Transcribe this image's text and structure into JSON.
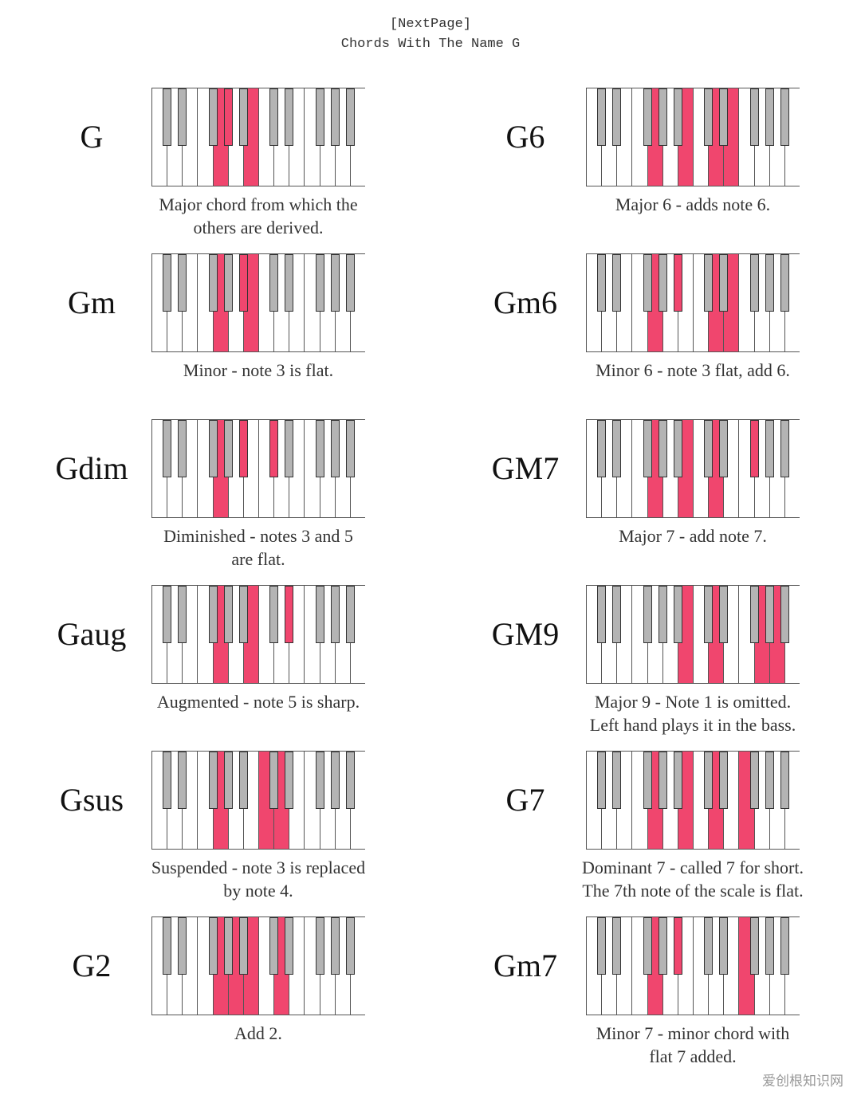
{
  "header": {
    "line1": "[NextPage]",
    "line2": "Chords With The Name G"
  },
  "colors": {
    "highlight": "#f0466e",
    "black_key": "#b4b4b4"
  },
  "chords": [
    {
      "name": "G",
      "desc_lines": [
        "Major chord from which the",
        "others are derived."
      ],
      "white_on": [
        4,
        6
      ],
      "black_on": [
        3
      ]
    },
    {
      "name": "G6",
      "desc_lines": [
        "Major 6 - adds note 6."
      ],
      "white_on": [
        4,
        6,
        8,
        9
      ],
      "black_on": []
    },
    {
      "name": "Gm",
      "desc_lines": [
        "Minor - note 3 is flat."
      ],
      "white_on": [
        4,
        6
      ],
      "black_on": [
        4
      ]
    },
    {
      "name": "Gm6",
      "desc_lines": [
        "Minor 6 - note 3 flat, add 6."
      ],
      "white_on": [
        4,
        8,
        9
      ],
      "black_on": [
        4
      ]
    },
    {
      "name": "Gdim",
      "desc_lines": [
        "Diminished - notes 3 and 5",
        "are flat."
      ],
      "white_on": [
        4
      ],
      "black_on": [
        4,
        5
      ]
    },
    {
      "name": "GM7",
      "desc_lines": [
        "Major 7 - add note 7."
      ],
      "white_on": [
        4,
        6,
        8
      ],
      "black_on": [
        7
      ]
    },
    {
      "name": "Gaug",
      "desc_lines": [
        "Augmented - note 5 is sharp."
      ],
      "white_on": [
        4,
        6
      ],
      "black_on": [
        6
      ]
    },
    {
      "name": "GM9",
      "desc_lines": [
        "Major 9 - Note 1 is omitted.",
        "Left hand plays it in the bass."
      ],
      "white_on": [
        6,
        8,
        11,
        12
      ],
      "black_on": []
    },
    {
      "name": "Gsus",
      "desc_lines": [
        "Suspended - note 3 is replaced",
        "by note 4."
      ],
      "white_on": [
        4,
        7,
        8
      ],
      "black_on": []
    },
    {
      "name": "G7",
      "desc_lines": [
        "Dominant 7 - called 7 for short.",
        "The 7th note of the scale is flat."
      ],
      "white_on": [
        4,
        6,
        8,
        10
      ],
      "black_on": []
    },
    {
      "name": "G2",
      "desc_lines": [
        "Add 2."
      ],
      "white_on": [
        4,
        5,
        6,
        8
      ],
      "black_on": []
    },
    {
      "name": "Gm7",
      "desc_lines": [
        "Minor 7 - minor chord with",
        "flat 7 added."
      ],
      "white_on": [
        4,
        10
      ],
      "black_on": [
        4
      ]
    }
  ],
  "watermark": "爱创根知识网"
}
